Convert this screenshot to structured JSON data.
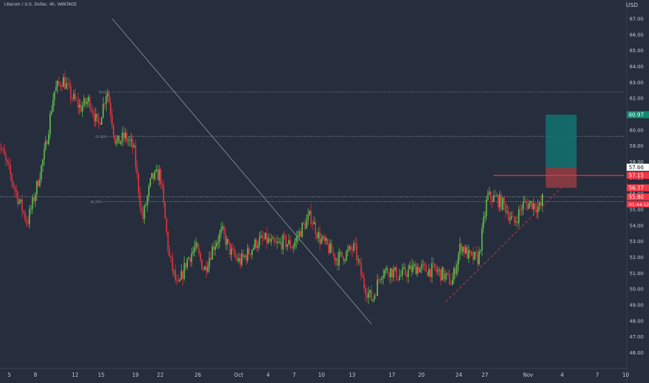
{
  "header": {
    "symbol_text": "Litecoin / U.S. Dollar, 4h, VANTAGE",
    "currency": "USD"
  },
  "colors": {
    "background": "#262d3c",
    "up": "#5fbd4a",
    "down": "#e0323c",
    "text": "#c8ccd6",
    "grid_dotted": "#aab0bd",
    "trend_line": "#8b93a3",
    "target_zone": "#13706d",
    "stop_zone": "#8e3c42",
    "entry_line": "#f23645",
    "label_red": "#f23645",
    "label_green": "#0e8a6e",
    "label_white": "#ffffff"
  },
  "chart_data": {
    "type": "candlestick",
    "title": "Litecoin / U.S. Dollar, 4h, VANTAGE",
    "ylabel": "USD",
    "ylim": [
      45.1,
      67.7
    ],
    "y_ticks": [
      "46.00",
      "47.00",
      "48.00",
      "49.00",
      "50.00",
      "51.00",
      "52.00",
      "53.00",
      "54.00",
      "55.00",
      "56.00",
      "57.00",
      "58.00",
      "59.00",
      "60.00",
      "61.00",
      "62.00",
      "63.00",
      "64.00",
      "65.00",
      "66.00",
      "67.00"
    ],
    "x_ticks": [
      "5",
      "8",
      "12",
      "15",
      "19",
      "22",
      "26",
      "Oct",
      "4",
      "7",
      "10",
      "13",
      "17",
      "20",
      "24",
      "27",
      "Nov",
      "4",
      "7",
      "10"
    ],
    "bars_per_day": 6,
    "price_path": [
      [
        -1,
        59.8
      ],
      [
        0,
        58.9
      ],
      [
        2,
        55.6
      ],
      [
        3,
        54.2
      ],
      [
        4,
        56.3
      ],
      [
        5,
        58.7
      ],
      [
        6,
        62.4
      ],
      [
        7,
        63.2
      ],
      [
        8,
        62.1
      ],
      [
        9,
        61.4
      ],
      [
        10,
        61.9
      ],
      [
        11,
        60.2
      ],
      [
        12,
        62.6
      ],
      [
        13,
        59.1
      ],
      [
        14,
        59.6
      ],
      [
        15,
        58.9
      ],
      [
        16,
        54.3
      ],
      [
        17,
        56.9
      ],
      [
        18,
        57.3
      ],
      [
        19,
        52.1
      ],
      [
        20,
        50.0
      ],
      [
        21,
        51.8
      ],
      [
        22,
        52.6
      ],
      [
        23,
        51.2
      ],
      [
        24,
        52.7
      ],
      [
        25,
        53.6
      ],
      [
        26,
        52.3
      ],
      [
        27,
        51.7
      ],
      [
        28,
        52.3
      ],
      [
        29,
        53.0
      ],
      [
        30,
        53.1
      ],
      [
        31,
        52.7
      ],
      [
        32,
        53.0
      ],
      [
        33,
        52.7
      ],
      [
        34,
        53.8
      ],
      [
        35,
        54.6
      ],
      [
        36,
        53.2
      ],
      [
        37,
        52.6
      ],
      [
        38,
        51.9
      ],
      [
        39,
        52.2
      ],
      [
        40,
        52.6
      ],
      [
        41,
        50.3
      ],
      [
        42,
        49.3
      ],
      [
        43,
        51.1
      ],
      [
        44,
        51.2
      ],
      [
        45,
        50.8
      ],
      [
        46,
        51.1
      ],
      [
        47,
        51.4
      ],
      [
        48,
        51.2
      ],
      [
        49,
        51.2
      ],
      [
        50,
        50.9
      ],
      [
        51,
        50.4
      ],
      [
        52,
        52.8
      ],
      [
        53,
        52.0
      ],
      [
        54,
        51.9
      ],
      [
        55,
        55.8
      ],
      [
        56,
        55.7
      ],
      [
        57,
        55.2
      ],
      [
        58,
        54.1
      ],
      [
        59,
        55.3
      ],
      [
        60,
        55.4
      ],
      [
        61,
        55.1
      ],
      [
        61.3,
        55.8
      ]
    ],
    "price_labels": [
      {
        "text": "60.97",
        "value": 60.97,
        "style": "green"
      },
      {
        "text": "57.66",
        "value": 57.66,
        "style": "white"
      },
      {
        "text": "57.15",
        "value": 57.15,
        "style": "red"
      },
      {
        "text": "56.37",
        "value": 56.37,
        "style": "red"
      },
      {
        "text": "55.80",
        "value": 55.8,
        "style": "red"
      },
      {
        "text": "01:44:12",
        "value": 55.34,
        "style": "red_small"
      }
    ],
    "fib_levels": [
      {
        "label": "78.60%",
        "value": 62.4,
        "from_day": 12.5
      },
      {
        "label": "61.80%",
        "value": 59.6,
        "from_day": 12.2
      },
      {
        "label": "38.20%",
        "value": 55.5,
        "from_day": 11.6
      }
    ],
    "current_price_line": 55.8,
    "trend_line": {
      "from": [
        12.6,
        67.0
      ],
      "to": [
        41.9,
        47.8
      ]
    },
    "support_line": {
      "from": [
        50.3,
        49.2
      ],
      "to": [
        63.4,
        56.4
      ]
    },
    "entry_line": {
      "value": 57.15,
      "from_day": 55.7
    },
    "position": {
      "from_day": 61.6,
      "to_day": 65.1,
      "target": 60.97,
      "entry": 57.66,
      "stop": 56.37
    }
  }
}
